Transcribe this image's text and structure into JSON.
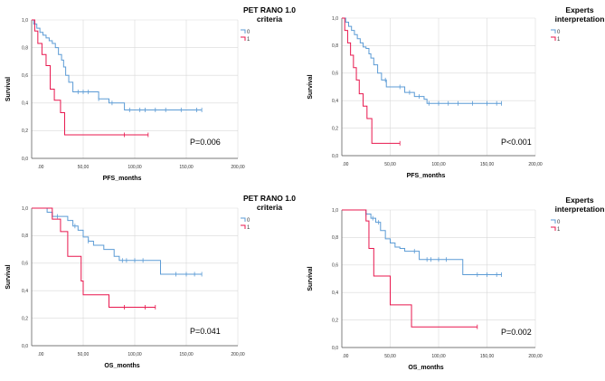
{
  "chart_data": [
    {
      "type": "line",
      "step": true,
      "title": "",
      "xlabel": "PFS_months",
      "ylabel": "Survival",
      "xlim": [
        0,
        200
      ],
      "ylim": [
        0,
        1
      ],
      "x_tick_labels": [
        ".00",
        "50,00",
        "100,00",
        "150,00",
        "200,00"
      ],
      "y_tick_labels": [
        "0,0",
        "0,2",
        "0,4",
        "0,6",
        "0,8",
        "1,0"
      ],
      "legend_title": [
        "PET RANO 1.0",
        "criteria"
      ],
      "p_value": "P=0.006",
      "series": [
        {
          "name": "0",
          "color": "#5b9bd5",
          "x": [
            0,
            2,
            5,
            8,
            11,
            14,
            17,
            20,
            23,
            26,
            29,
            31,
            33,
            36,
            40,
            46,
            55,
            65,
            75,
            90,
            100,
            110,
            125,
            140,
            155,
            165
          ],
          "y": [
            1.0,
            0.97,
            0.94,
            0.91,
            0.89,
            0.87,
            0.85,
            0.83,
            0.8,
            0.75,
            0.71,
            0.66,
            0.6,
            0.55,
            0.48,
            0.48,
            0.48,
            0.43,
            0.4,
            0.35,
            0.35,
            0.35,
            0.35,
            0.35,
            0.35,
            0.35
          ],
          "censored_x": [
            45,
            50,
            55,
            65,
            78,
            95,
            105,
            110,
            120,
            130,
            145,
            160,
            165
          ]
        },
        {
          "name": "1",
          "color": "#e8174e",
          "x": [
            0,
            3,
            6,
            10,
            14,
            18,
            22,
            28,
            32,
            48,
            90,
            113
          ],
          "y": [
            1.0,
            0.92,
            0.83,
            0.75,
            0.67,
            0.5,
            0.42,
            0.33,
            0.17,
            0.17,
            0.17,
            0.17
          ],
          "censored_x": [
            90,
            113
          ]
        }
      ]
    },
    {
      "type": "line",
      "step": true,
      "title": "",
      "xlabel": "PFS_months",
      "ylabel": "Survival",
      "xlim": [
        0,
        200
      ],
      "ylim": [
        0,
        1
      ],
      "x_tick_labels": [
        ".00",
        "50,00",
        "100,00",
        "150,00",
        "200,00"
      ],
      "y_tick_labels": [
        "0,0",
        "0,2",
        "0,4",
        "0,6",
        "0,8",
        "1,0"
      ],
      "legend_title": [
        "Experts",
        "interpretation"
      ],
      "p_value": "P<0.001",
      "series": [
        {
          "name": "0",
          "color": "#5b9bd5",
          "x": [
            0,
            4,
            7,
            10,
            13,
            16,
            19,
            22,
            25,
            28,
            30,
            33,
            37,
            41,
            46,
            55,
            65,
            75,
            85,
            88,
            100,
            115,
            130,
            150,
            165
          ],
          "y": [
            1.0,
            0.97,
            0.94,
            0.91,
            0.88,
            0.85,
            0.82,
            0.79,
            0.78,
            0.74,
            0.71,
            0.66,
            0.6,
            0.55,
            0.5,
            0.5,
            0.46,
            0.43,
            0.41,
            0.38,
            0.38,
            0.38,
            0.38,
            0.38,
            0.38
          ],
          "censored_x": [
            45,
            60,
            70,
            80,
            90,
            100,
            110,
            120,
            135,
            150,
            160,
            165
          ]
        },
        {
          "name": "1",
          "color": "#e8174e",
          "x": [
            0,
            3,
            6,
            9,
            12,
            15,
            18,
            22,
            26,
            31,
            60
          ],
          "y": [
            1.0,
            0.91,
            0.82,
            0.73,
            0.64,
            0.55,
            0.45,
            0.36,
            0.27,
            0.09,
            0.09
          ],
          "censored_x": [
            60
          ]
        }
      ]
    },
    {
      "type": "line",
      "step": true,
      "title": "",
      "xlabel": "OS_months",
      "ylabel": "Survival",
      "xlim": [
        0,
        200
      ],
      "ylim": [
        0,
        1
      ],
      "x_tick_labels": [
        ".00",
        "50,00",
        "100,00",
        "150,00",
        "200,00"
      ],
      "y_tick_labels": [
        "0,0",
        "0,2",
        "0,4",
        "0,6",
        "0,8",
        "1,0"
      ],
      "legend_title": [
        "PET RANO 1.0",
        "criteria"
      ],
      "p_value": "P=0.041",
      "series": [
        {
          "name": "0",
          "color": "#5b9bd5",
          "x": [
            0,
            15,
            20,
            25,
            35,
            40,
            45,
            50,
            55,
            60,
            70,
            80,
            85,
            90,
            100,
            110,
            120,
            125,
            135,
            150,
            165
          ],
          "y": [
            1.0,
            0.97,
            0.94,
            0.94,
            0.91,
            0.87,
            0.84,
            0.79,
            0.76,
            0.73,
            0.7,
            0.65,
            0.62,
            0.62,
            0.62,
            0.62,
            0.62,
            0.52,
            0.52,
            0.52,
            0.52
          ],
          "censored_x": [
            25,
            42,
            55,
            88,
            92,
            100,
            108,
            140,
            150,
            158,
            165
          ]
        },
        {
          "name": "1",
          "color": "#e8174e",
          "x": [
            0,
            20,
            28,
            35,
            45,
            48,
            50,
            70,
            75,
            90,
            110,
            120
          ],
          "y": [
            1.0,
            0.92,
            0.83,
            0.65,
            0.65,
            0.47,
            0.37,
            0.37,
            0.28,
            0.28,
            0.28,
            0.28
          ],
          "censored_x": [
            90,
            110,
            120
          ]
        }
      ]
    },
    {
      "type": "line",
      "step": true,
      "title": "",
      "xlabel": "OS_months",
      "ylabel": "Survival",
      "xlim": [
        0,
        200
      ],
      "ylim": [
        0,
        1
      ],
      "x_tick_labels": [
        ".00",
        "50,00",
        "100,00",
        "150,00",
        "200,00"
      ],
      "y_tick_labels": [
        "0,0",
        "0,2",
        "0,4",
        "0,6",
        "0,8",
        "1,0"
      ],
      "legend_title": [
        "Experts",
        "interpretation"
      ],
      "p_value": "P=0.002",
      "series": [
        {
          "name": "0",
          "color": "#5b9bd5",
          "x": [
            0,
            25,
            30,
            35,
            40,
            45,
            50,
            55,
            60,
            65,
            70,
            80,
            85,
            90,
            110,
            120,
            125,
            150,
            165
          ],
          "y": [
            1.0,
            0.97,
            0.94,
            0.91,
            0.85,
            0.79,
            0.76,
            0.73,
            0.72,
            0.7,
            0.7,
            0.64,
            0.64,
            0.64,
            0.64,
            0.64,
            0.53,
            0.53,
            0.53
          ],
          "censored_x": [
            25,
            32,
            38,
            75,
            88,
            92,
            100,
            108,
            140,
            150,
            160,
            165
          ]
        },
        {
          "name": "1",
          "color": "#e8174e",
          "x": [
            0,
            25,
            28,
            33,
            48,
            50,
            72,
            100,
            140
          ],
          "y": [
            1.0,
            0.92,
            0.72,
            0.52,
            0.52,
            0.31,
            0.15,
            0.15,
            0.15
          ],
          "censored_x": [
            140
          ]
        }
      ]
    }
  ]
}
